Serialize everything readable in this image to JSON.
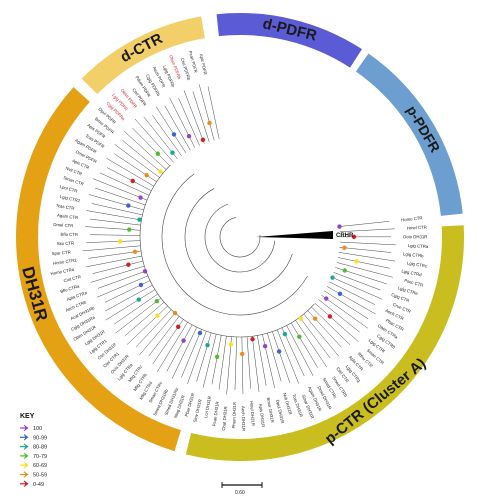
{
  "groups": [
    {
      "label": "d-PDFR",
      "color": "#5b5bd6"
    },
    {
      "label": "p-PDFR",
      "color": "#6c9fd0"
    },
    {
      "label": "p-CTR (Cluster A)",
      "color": "#c9bd1f"
    },
    {
      "label": "DH31R",
      "color": "#e4a114"
    },
    {
      "label": "d-CTR",
      "color": "#f3cf6a"
    }
  ],
  "outgroup": {
    "label": "CRHR"
  },
  "key": {
    "title": "KEY",
    "items": [
      {
        "label": "100",
        "color": "#9b3fc9"
      },
      {
        "label": "90-99",
        "color": "#3f5fd6"
      },
      {
        "label": "80-89",
        "color": "#1aa89a"
      },
      {
        "label": "70-79",
        "color": "#4cbf2e"
      },
      {
        "label": "60-69",
        "color": "#ffe01a"
      },
      {
        "label": "50-59",
        "color": "#f08a1a"
      },
      {
        "label": "0-49",
        "color": "#d21f1f"
      }
    ]
  },
  "scale": {
    "label": "0.60"
  },
  "leaves": [
    "Homo CTR",
    "Hmel CTR",
    "Octo DH31R",
    "Lgig CTRa",
    "Lgig CTRb",
    "Lgig CTRc",
    "Lgig CTRd",
    "Psec CTR",
    "Lgig CTRe",
    "Cgig CTR",
    "Crue CTR",
    "Aech CTR",
    "Pbac CTR",
    "Obim CTRa",
    "Cgig CTRb",
    "Lgig CTRf",
    "Sman CTR",
    "Rthu CTR",
    "Apla CTR",
    "Lgig CTRg",
    "Ctel CTR",
    "Smed CTRb",
    "Smed CTRc",
    "Dmel DH31R",
    "Agam DH31R",
    "Smar DH31R",
    "Tcas DH31R",
    "Nvit DH31R",
    "Dpul DH31R",
    "Bmor DH31R",
    "Apis DH31R",
    "Hmel DH31R",
    "Aech DH31R",
    "Phum DH31R",
    "Cbat DH31R",
    "Pcan DH31R",
    "Lcri DH31R",
    "Sinv DH31R",
    "Pbar DH31R",
    "Nlug DH31R",
    "Smed DH31Ra",
    "Smed DH31Rb",
    "Sman CTRc",
    "Mlig CTRd",
    "Mlig CTRb",
    "Mlig CTRc",
    "Lgig CTRa",
    "Ocia DH31R",
    "Ctel CTR1",
    "Ctel DH31R",
    "Lgig CTR1",
    "Lgig DH31R",
    "Obim DH31R",
    "Cgig DH31Ra",
    "Acal DH31Rb",
    "Aech CTRb",
    "Apla CTRa",
    "Bflo CTRa",
    "Cint CTR",
    "Homo CTRa",
    "Homo CTR2",
    "Spur CTR",
    "Sko CTR",
    "Bflo CTR",
    "Dmel CTR",
    "Agam CTR",
    "Tcas CTR",
    "Lgig CTR2",
    "Lpol CTR",
    "Sman CTR",
    "Nvit CTR",
    "Apis CTR",
    "Dmel PDFR",
    "Agam PDFR",
    "Tcas PDFR",
    "Apis PDFR",
    "Bmor PDFR",
    "Dpul PDFR",
    "Cgig PDFRa",
    "Lgig PDFR",
    "Obim PDFR",
    "Ctel PDFR",
    "Pdum PDFR",
    "Cgig PDFRb",
    "Aech PDFR",
    "Lgig PDFRb",
    "Obim PDFRb",
    "Ctel PDFRb",
    "Pcan PDFR",
    "Aplc PDFR"
  ]
}
